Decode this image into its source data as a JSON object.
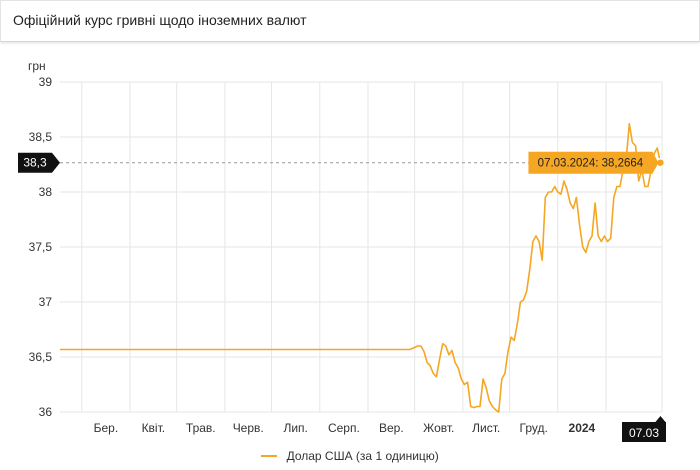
{
  "header": {
    "title": "Офіційний курс гривні щодо іноземних валют"
  },
  "colors": {
    "line": "#f5a623",
    "tooltip_bg": "#f5a623",
    "badge_bg": "#111111",
    "grid": "#e6e6e6"
  },
  "chart_data": {
    "type": "line",
    "title": "Офіційний курс гривні щодо іноземних валют",
    "ylabel": "грн",
    "ylim": [
      36,
      39
    ],
    "yticks": [
      36,
      36.5,
      37,
      37.5,
      38,
      38.5,
      39
    ],
    "ytick_labels": [
      "36",
      "36,5",
      "37",
      "37,5",
      "38",
      "38,5",
      "39"
    ],
    "xticks": [
      {
        "label": "Бер.",
        "date": "2023-03-01"
      },
      {
        "label": "Квіт.",
        "date": "2023-04-01"
      },
      {
        "label": "Трав.",
        "date": "2023-05-01"
      },
      {
        "label": "Черв.",
        "date": "2023-06-01"
      },
      {
        "label": "Лип.",
        "date": "2023-07-01"
      },
      {
        "label": "Серп.",
        "date": "2023-08-01"
      },
      {
        "label": "Вер.",
        "date": "2023-09-01"
      },
      {
        "label": "Жовт.",
        "date": "2023-10-01"
      },
      {
        "label": "Лист.",
        "date": "2023-11-01"
      },
      {
        "label": "Груд.",
        "date": "2023-12-01"
      },
      {
        "label": "2024",
        "date": "2024-01-01",
        "bold": true
      },
      {
        "label": "Л",
        "date": "2024-02-01"
      }
    ],
    "xlim": [
      "2023-02-15",
      "2024-03-08"
    ],
    "grid": true,
    "legend_position": "bottom",
    "series": [
      {
        "name": "Долар США (за 1 одиницю)",
        "points": [
          [
            "2023-02-15",
            36.5686
          ],
          [
            "2023-09-28",
            36.5686
          ],
          [
            "2023-10-03",
            36.6
          ],
          [
            "2023-10-05",
            36.6
          ],
          [
            "2023-10-07",
            36.55
          ],
          [
            "2023-10-09",
            36.45
          ],
          [
            "2023-10-11",
            36.42
          ],
          [
            "2023-10-13",
            36.35
          ],
          [
            "2023-10-15",
            36.32
          ],
          [
            "2023-10-17",
            36.48
          ],
          [
            "2023-10-19",
            36.62
          ],
          [
            "2023-10-21",
            36.6
          ],
          [
            "2023-10-23",
            36.52
          ],
          [
            "2023-10-25",
            36.56
          ],
          [
            "2023-10-27",
            36.45
          ],
          [
            "2023-10-29",
            36.4
          ],
          [
            "2023-10-31",
            36.3
          ],
          [
            "2023-11-02",
            36.25
          ],
          [
            "2023-11-04",
            36.27
          ],
          [
            "2023-11-06",
            36.05
          ],
          [
            "2023-11-08",
            36.04
          ],
          [
            "2023-11-10",
            36.05
          ],
          [
            "2023-11-12",
            36.05
          ],
          [
            "2023-11-14",
            36.3
          ],
          [
            "2023-11-16",
            36.22
          ],
          [
            "2023-11-18",
            36.1
          ],
          [
            "2023-11-20",
            36.05
          ],
          [
            "2023-11-22",
            36.02
          ],
          [
            "2023-11-24",
            36.0
          ],
          [
            "2023-11-26",
            36.3
          ],
          [
            "2023-11-28",
            36.35
          ],
          [
            "2023-11-30",
            36.55
          ],
          [
            "2023-12-02",
            36.68
          ],
          [
            "2023-12-04",
            36.65
          ],
          [
            "2023-12-06",
            36.8
          ],
          [
            "2023-12-08",
            37.0
          ],
          [
            "2023-12-10",
            37.02
          ],
          [
            "2023-12-12",
            37.1
          ],
          [
            "2023-12-14",
            37.3
          ],
          [
            "2023-12-16",
            37.55
          ],
          [
            "2023-12-18",
            37.6
          ],
          [
            "2023-12-20",
            37.55
          ],
          [
            "2023-12-22",
            37.38
          ],
          [
            "2023-12-24",
            37.95
          ],
          [
            "2023-12-26",
            38.0
          ],
          [
            "2023-12-28",
            38.0
          ],
          [
            "2023-12-30",
            38.05
          ],
          [
            "2024-01-01",
            38.0
          ],
          [
            "2024-01-03",
            37.98
          ],
          [
            "2024-01-05",
            38.1
          ],
          [
            "2024-01-07",
            38.02
          ],
          [
            "2024-01-09",
            37.9
          ],
          [
            "2024-01-11",
            37.85
          ],
          [
            "2024-01-13",
            37.95
          ],
          [
            "2024-01-15",
            37.7
          ],
          [
            "2024-01-17",
            37.5
          ],
          [
            "2024-01-19",
            37.45
          ],
          [
            "2024-01-21",
            37.55
          ],
          [
            "2024-01-23",
            37.6
          ],
          [
            "2024-01-25",
            37.9
          ],
          [
            "2024-01-27",
            37.6
          ],
          [
            "2024-01-29",
            37.55
          ],
          [
            "2024-01-31",
            37.6
          ],
          [
            "2024-02-02",
            37.55
          ],
          [
            "2024-02-04",
            37.58
          ],
          [
            "2024-02-06",
            37.95
          ],
          [
            "2024-02-08",
            38.05
          ],
          [
            "2024-02-10",
            38.05
          ],
          [
            "2024-02-12",
            38.2
          ],
          [
            "2024-02-14",
            38.3
          ],
          [
            "2024-02-16",
            38.62
          ],
          [
            "2024-02-18",
            38.45
          ],
          [
            "2024-02-20",
            38.42
          ],
          [
            "2024-02-22",
            38.1
          ],
          [
            "2024-02-24",
            38.2
          ],
          [
            "2024-02-26",
            38.05
          ],
          [
            "2024-02-28",
            38.05
          ],
          [
            "2024-03-01",
            38.2
          ],
          [
            "2024-03-03",
            38.35
          ],
          [
            "2024-03-05",
            38.4
          ],
          [
            "2024-03-07",
            38.2664
          ]
        ]
      }
    ],
    "tooltip": {
      "date": "07.03.2024",
      "value": "38,2664",
      "text": "07.03.2024: 38,2664"
    },
    "crosshair": {
      "y_label": "38,3",
      "y_value": 38.2664,
      "x_label": "07.03",
      "x_date": "2024-03-07"
    }
  }
}
